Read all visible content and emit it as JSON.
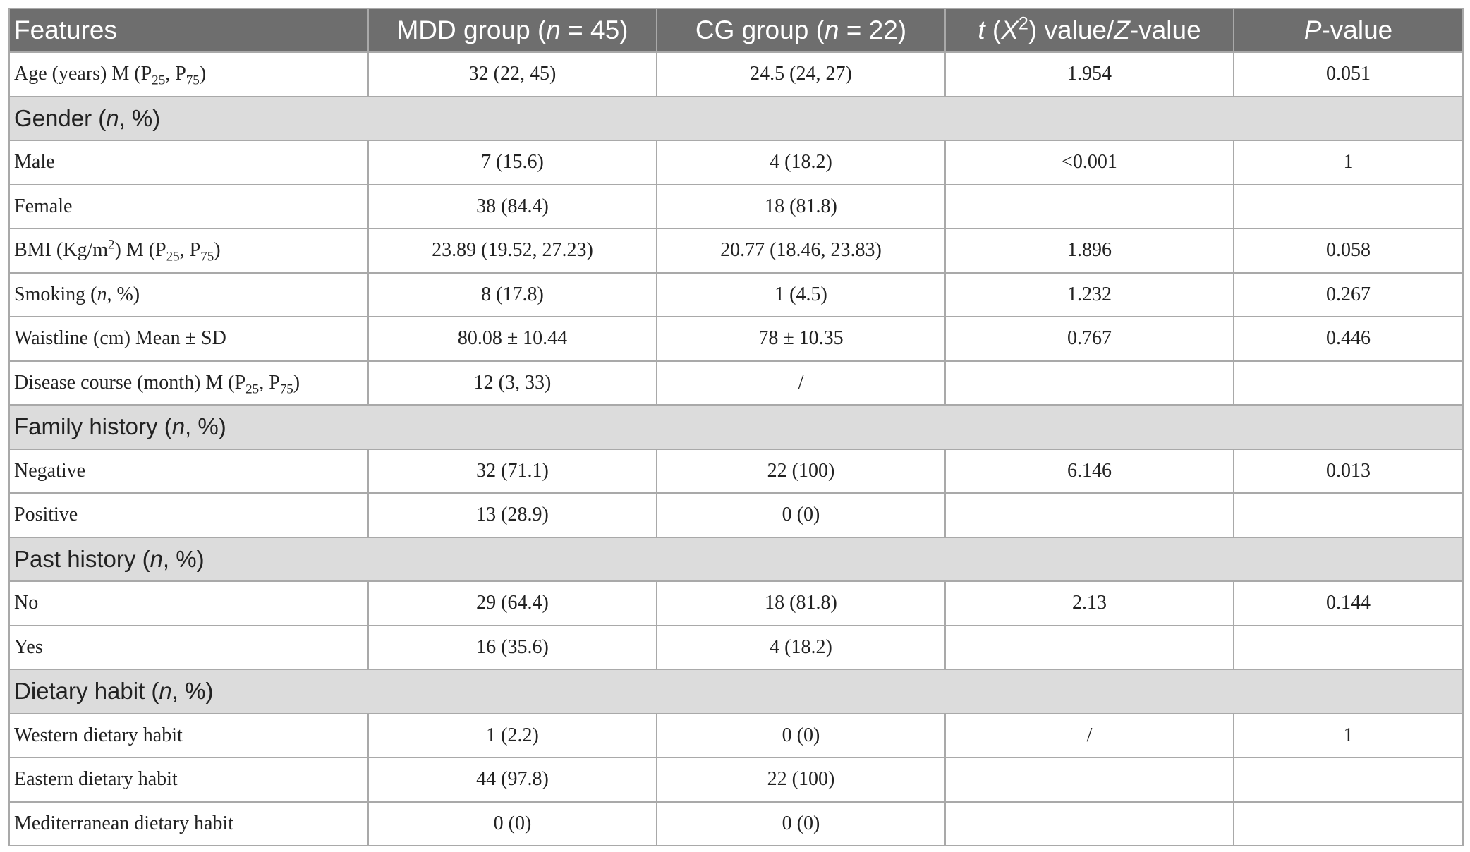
{
  "table": {
    "headers": {
      "features": "Features",
      "mdd_prefix": "MDD group (",
      "mdd_n": "n",
      "mdd_suffix": " = 45)",
      "cg_prefix": "CG group (",
      "cg_n": "n",
      "cg_suffix": " = 22)",
      "stat_t": "t",
      "stat_open": " (",
      "stat_x": "X",
      "stat_sup": "2",
      "stat_mid": ") value/",
      "stat_z": "Z",
      "stat_end": "-value",
      "p_p": "P",
      "p_end": "-value"
    },
    "rows": {
      "age": {
        "label_a": "Age (years) M (P",
        "sub1": "25",
        "label_b": ", P",
        "sub2": "75",
        "label_c": ")",
        "mdd": "32 (22, 45)",
        "cg": "24.5 (24, 27)",
        "stat": "1.954",
        "p": "0.051"
      },
      "gender_section": {
        "a": "Gender (",
        "n": "n",
        "b": ", %)"
      },
      "male": {
        "label": "Male",
        "mdd": "7 (15.6)",
        "cg": "4 (18.2)",
        "stat": "<0.001",
        "p": "1"
      },
      "female": {
        "label": "Female",
        "mdd": "38 (84.4)",
        "cg": "18 (81.8)",
        "stat": "",
        "p": ""
      },
      "bmi": {
        "label_a": "BMI (Kg/m",
        "sup": "2",
        "label_b": ") M (P",
        "sub1": "25",
        "label_c": ", P",
        "sub2": "75",
        "label_d": ")",
        "mdd": "23.89 (19.52, 27.23)",
        "cg": "20.77 (18.46, 23.83)",
        "stat": "1.896",
        "p": "0.058"
      },
      "smoking": {
        "label_a": "Smoking (",
        "n": "n",
        "label_b": ", %)",
        "mdd": "8 (17.8)",
        "cg": "1 (4.5)",
        "stat": "1.232",
        "p": "0.267"
      },
      "waist": {
        "label": "Waistline (cm) Mean ± SD",
        "mdd": "80.08 ± 10.44",
        "cg": "78 ± 10.35",
        "stat": "0.767",
        "p": "0.446"
      },
      "disease": {
        "label_a": "Disease course (month) M (P",
        "sub1": "25",
        "label_b": ", P",
        "sub2": "75",
        "label_c": ")",
        "mdd": "12 (3, 33)",
        "cg": "/",
        "stat": "",
        "p": ""
      },
      "family_section": {
        "a": "Family history (",
        "n": "n",
        "b": ", %)"
      },
      "negative": {
        "label": "Negative",
        "mdd": "32 (71.1)",
        "cg": "22 (100)",
        "stat": "6.146",
        "p": "0.013"
      },
      "positive": {
        "label": "Positive",
        "mdd": "13 (28.9)",
        "cg": "0 (0)",
        "stat": "",
        "p": ""
      },
      "past_section": {
        "a": "Past history (",
        "n": "n",
        "b": ", %)"
      },
      "no": {
        "label": "No",
        "mdd": "29 (64.4)",
        "cg": "18 (81.8)",
        "stat": "2.13",
        "p": "0.144"
      },
      "yes": {
        "label": "Yes",
        "mdd": "16 (35.6)",
        "cg": "4 (18.2)",
        "stat": "",
        "p": ""
      },
      "diet_section": {
        "a": "Dietary habit (",
        "n": "n",
        "b": ", %)"
      },
      "western": {
        "label": "Western dietary habit",
        "mdd": "1 (2.2)",
        "cg": "0 (0)",
        "stat": "/",
        "p": "1"
      },
      "eastern": {
        "label": "Eastern dietary habit",
        "mdd": "44 (97.8)",
        "cg": "22 (100)",
        "stat": "",
        "p": ""
      },
      "mediterranean": {
        "label": "Mediterranean dietary habit",
        "mdd": "0 (0)",
        "cg": "0 (0)",
        "stat": "",
        "p": ""
      }
    }
  }
}
